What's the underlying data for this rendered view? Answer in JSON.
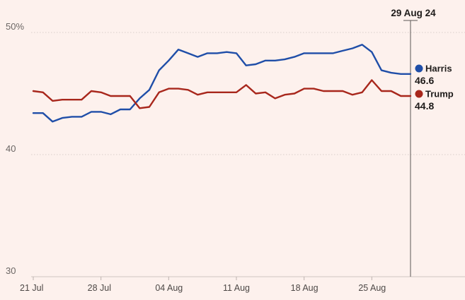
{
  "chart_data": {
    "type": "line",
    "title": "",
    "xlabel": "",
    "ylabel": "",
    "ylim": [
      30,
      50
    ],
    "yticks": [
      {
        "value": 50,
        "label": "50%"
      },
      {
        "value": 40,
        "label": "40"
      },
      {
        "value": 30,
        "label": "30"
      }
    ],
    "xticks": [
      {
        "date": "2024-07-21",
        "label": "21 Jul"
      },
      {
        "date": "2024-07-28",
        "label": "28 Jul"
      },
      {
        "date": "2024-08-04",
        "label": "04 Aug"
      },
      {
        "date": "2024-08-11",
        "label": "11 Aug"
      },
      {
        "date": "2024-08-18",
        "label": "18 Aug"
      },
      {
        "date": "2024-08-25",
        "label": "25 Aug"
      }
    ],
    "xlim": [
      "2024-07-21",
      "2024-08-30"
    ],
    "grid": true,
    "legend": "right-end labels",
    "x": [
      "2024-07-21",
      "2024-07-22",
      "2024-07-23",
      "2024-07-24",
      "2024-07-25",
      "2024-07-26",
      "2024-07-27",
      "2024-07-28",
      "2024-07-29",
      "2024-07-30",
      "2024-07-31",
      "2024-08-01",
      "2024-08-02",
      "2024-08-03",
      "2024-08-04",
      "2024-08-05",
      "2024-08-06",
      "2024-08-07",
      "2024-08-08",
      "2024-08-09",
      "2024-08-10",
      "2024-08-11",
      "2024-08-12",
      "2024-08-13",
      "2024-08-14",
      "2024-08-15",
      "2024-08-16",
      "2024-08-17",
      "2024-08-18",
      "2024-08-19",
      "2024-08-20",
      "2024-08-21",
      "2024-08-22",
      "2024-08-23",
      "2024-08-24",
      "2024-08-25",
      "2024-08-26",
      "2024-08-27",
      "2024-08-28",
      "2024-08-29"
    ],
    "series": [
      {
        "name": "Harris",
        "color": "#1f4ea8",
        "end_value": "46.6",
        "values": [
          43.4,
          43.4,
          42.7,
          43.0,
          43.1,
          43.1,
          43.5,
          43.5,
          43.3,
          43.7,
          43.7,
          44.6,
          45.3,
          46.9,
          47.7,
          48.6,
          48.3,
          48.0,
          48.3,
          48.3,
          48.4,
          48.3,
          47.3,
          47.4,
          47.7,
          47.7,
          47.8,
          48.0,
          48.3,
          48.3,
          48.3,
          48.3,
          48.5,
          48.7,
          49.0,
          48.4,
          46.9,
          46.7,
          46.6,
          46.6
        ]
      },
      {
        "name": "Trump",
        "color": "#a8271c",
        "end_value": "44.8",
        "values": [
          45.2,
          45.1,
          44.4,
          44.5,
          44.5,
          44.5,
          45.2,
          45.1,
          44.8,
          44.8,
          44.8,
          43.8,
          43.9,
          45.1,
          45.4,
          45.4,
          45.3,
          44.9,
          45.1,
          45.1,
          45.1,
          45.1,
          45.7,
          45.0,
          45.1,
          44.6,
          44.9,
          45.0,
          45.4,
          45.4,
          45.2,
          45.2,
          45.2,
          44.9,
          45.1,
          46.1,
          45.2,
          45.2,
          44.8,
          44.8
        ]
      }
    ],
    "annotation": {
      "date": "2024-08-29",
      "label": "29 Aug 24"
    }
  }
}
